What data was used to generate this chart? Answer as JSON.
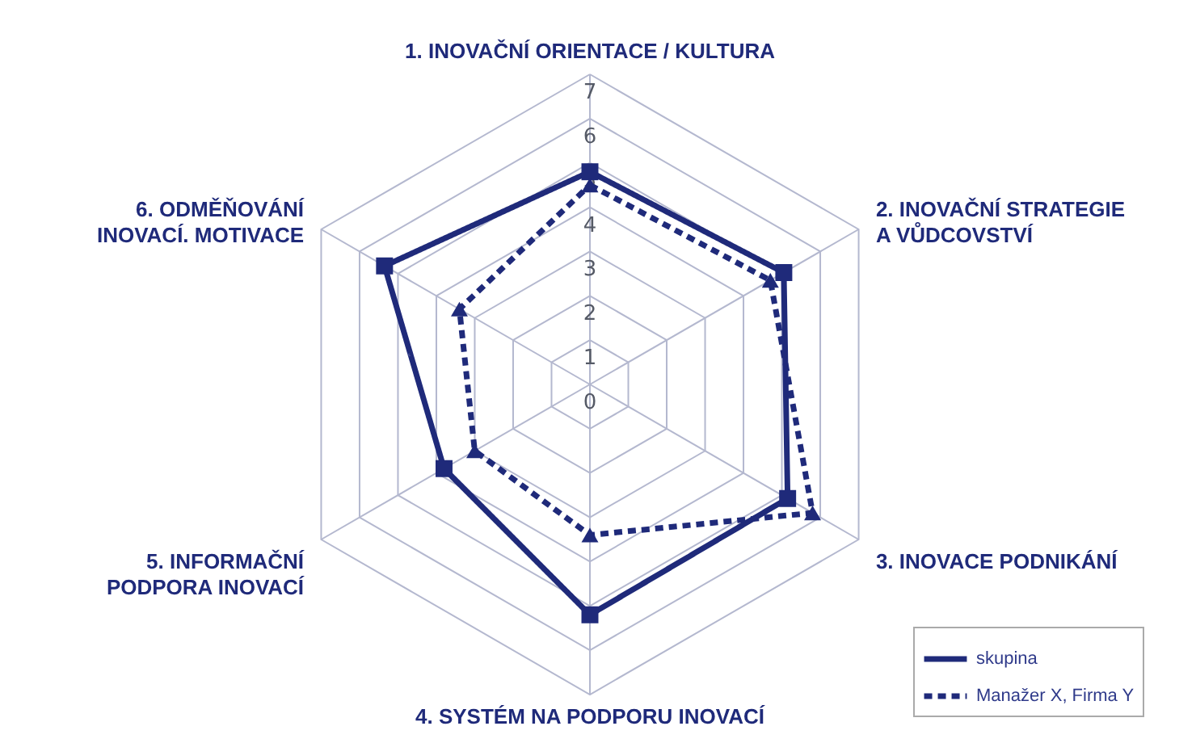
{
  "chart_data": {
    "type": "radar",
    "categories": [
      "1. INOVAČNÍ ORIENTACE / KULTURA",
      "2. INOVAČNÍ STRATEGIE A VŮDCOVSTVÍ",
      "3. INOVACE PODNIKÁNÍ",
      "4. SYSTÉM NA PODPORU INOVACÍ",
      "5. INFORMAČNÍ PODPORA INOVACÍ",
      "6. ODMĚŇOVÁNÍ INOVACÍ. MOTIVACE"
    ],
    "series": [
      {
        "name": "skupina",
        "color": "#1f2a7a",
        "line_style": "solid",
        "marker": "square",
        "values": [
          4.8,
          5.05,
          5.15,
          5.2,
          3.8,
          5.35
        ]
      },
      {
        "name": "Manažer X, Firma Y",
        "color": "#1f2a7a",
        "line_style": "dashed",
        "marker": "triangle",
        "values": [
          4.5,
          4.7,
          5.8,
          3.4,
          3.0,
          3.4
        ]
      }
    ],
    "ylim": [
      0,
      7
    ],
    "yticks": [
      0,
      1,
      2,
      3,
      4,
      5,
      6,
      7
    ],
    "grid": true,
    "legend": "bottom right"
  }
}
